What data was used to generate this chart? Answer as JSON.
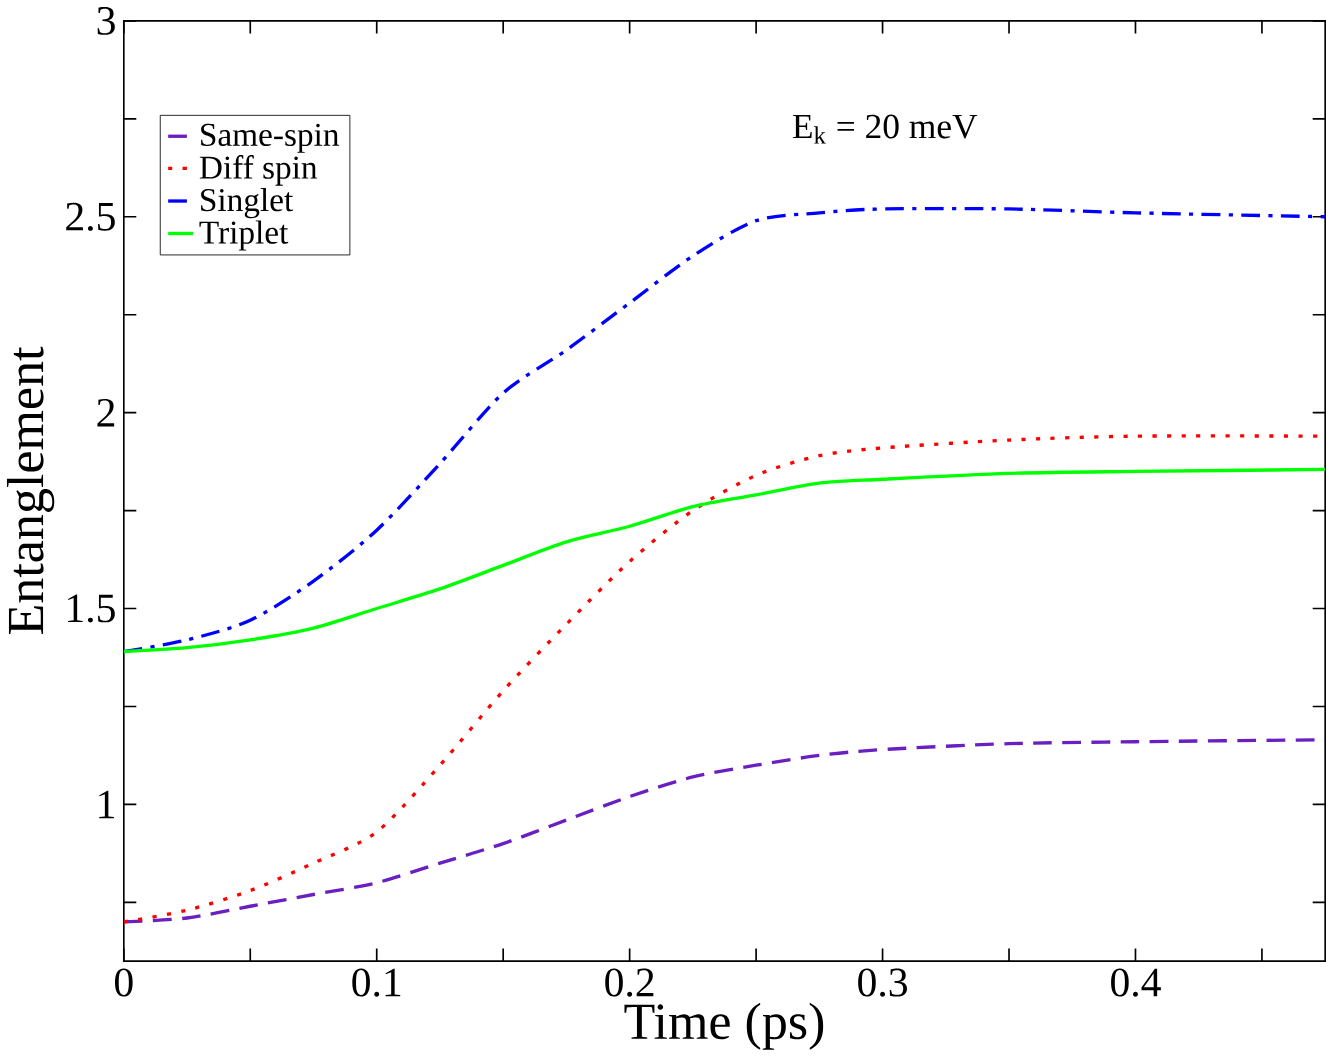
{
  "chart_data": {
    "type": "line",
    "xlabel": "Time (ps)",
    "ylabel": "Entanglement",
    "annotations": [
      "E$_{k}$ = 20 meV"
    ],
    "x": [
      0,
      0.025,
      0.05,
      0.075,
      0.1,
      0.125,
      0.15,
      0.175,
      0.2,
      0.225,
      0.25,
      0.275,
      0.3,
      0.35,
      0.4,
      0.475
    ],
    "series": [
      {
        "name": "Same-spin",
        "color": "#6a1fc0",
        "line_style": "dashed",
        "values": [
          0.7,
          0.71,
          0.74,
          0.77,
          0.8,
          0.85,
          0.9,
          0.96,
          1.02,
          1.07,
          1.1,
          1.125,
          1.14,
          1.155,
          1.16,
          1.165
        ]
      },
      {
        "name": "Diff spin",
        "color": "#ff0000",
        "line_style": "dotted",
        "values": [
          0.7,
          0.73,
          0.78,
          0.85,
          0.93,
          1.1,
          1.29,
          1.46,
          1.62,
          1.75,
          1.84,
          1.89,
          1.91,
          1.93,
          1.94,
          1.94
        ]
      },
      {
        "name": "Singlet",
        "color": "#0000ff",
        "line_style": "dashdot",
        "values": [
          1.39,
          1.42,
          1.47,
          1.57,
          1.7,
          1.87,
          2.05,
          2.16,
          2.28,
          2.4,
          2.49,
          2.51,
          2.52,
          2.52,
          2.51,
          2.5
        ]
      },
      {
        "name": "Triplet",
        "color": "#00ff00",
        "line_style": "solid",
        "values": [
          1.39,
          1.4,
          1.42,
          1.45,
          1.5,
          1.55,
          1.61,
          1.67,
          1.71,
          1.76,
          1.79,
          1.82,
          1.83,
          1.845,
          1.85,
          1.855
        ]
      }
    ],
    "xlim": [
      0,
      0.475
    ],
    "ylim": [
      0.6,
      3
    ],
    "xticks": [
      0,
      {
        "value": 0.05,
        "label": null
      },
      0.1,
      {
        "value": 0.15,
        "label": null
      },
      0.2,
      {
        "value": 0.25,
        "label": null
      },
      0.3,
      {
        "value": 0.35,
        "label": null
      },
      0.4,
      {
        "value": 0.45,
        "label": null
      }
    ],
    "yticks": [
      {
        "value": 0.75,
        "label": null
      },
      1,
      {
        "value": 1.25,
        "label": null
      },
      1.5,
      {
        "value": 1.75,
        "label": null
      },
      2,
      {
        "value": 2.25,
        "label": null
      },
      2.5,
      {
        "value": 2.75,
        "label": null
      },
      3
    ],
    "legend": "top left",
    "grid": false
  }
}
